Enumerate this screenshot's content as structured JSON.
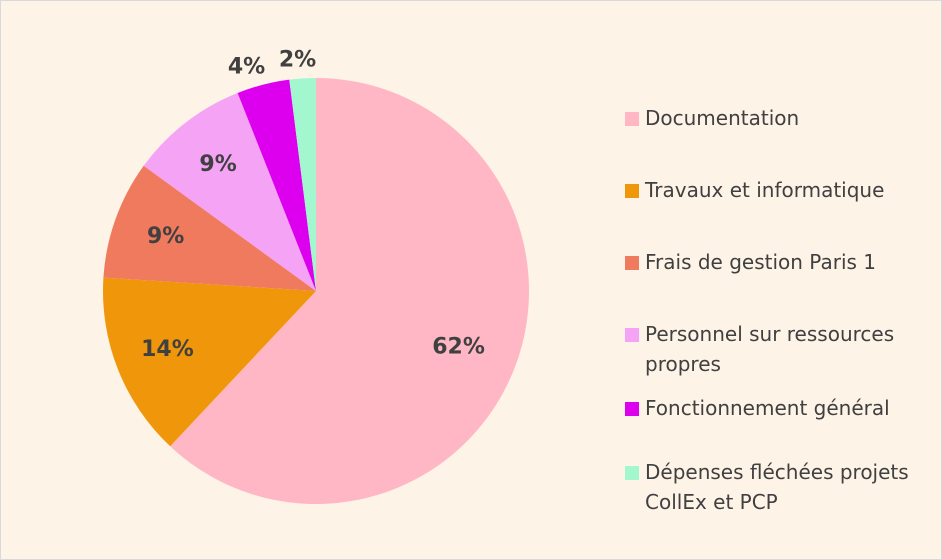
{
  "chart_data": {
    "type": "pie",
    "categories": [
      "Documentation",
      "Travaux et informatique",
      "Frais de gestion Paris 1",
      "Personnel sur ressources propres",
      "Fonctionnement général",
      "Dépenses fléchées projets CollEx et PCP"
    ],
    "values": [
      62,
      14,
      9,
      9,
      4,
      2
    ],
    "value_labels": [
      "62%",
      "14%",
      "9%",
      "9%",
      "4%",
      "2%"
    ],
    "colors": [
      "#ffb7c5",
      "#f0960a",
      "#f07a5e",
      "#f5a3f5",
      "#dd00ee",
      "#a3f7cf"
    ],
    "legend": "right"
  }
}
